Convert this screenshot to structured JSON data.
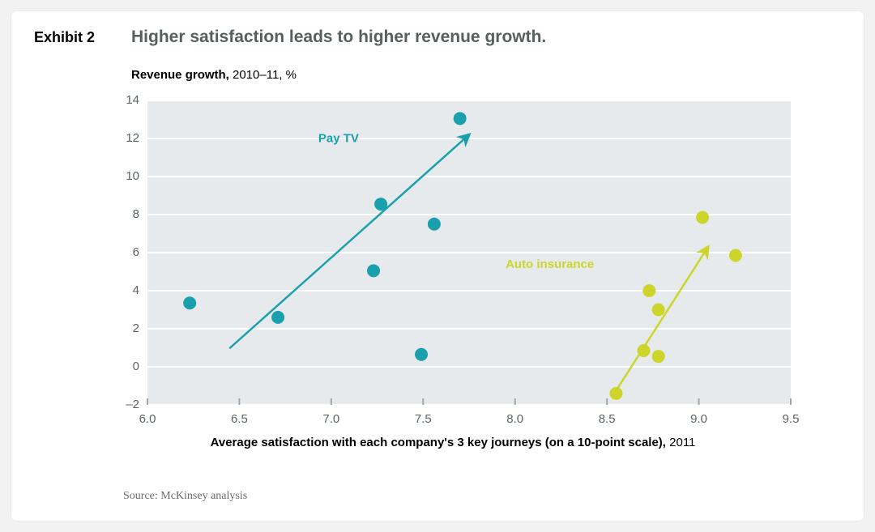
{
  "exhibit_label": "Exhibit 2",
  "title": "Higher satisfaction leads to higher revenue growth.",
  "subtitle_bold": "Revenue growth,",
  "subtitle_rest": " 2010–11, %",
  "xlabel_bold": "Average satisfaction with each company's 3 key journeys (on a 10-point scale),",
  "xlabel_rest": " 2011",
  "source": "Source: McKinsey analysis",
  "chart": {
    "type": "scatter",
    "plot_bg": "#e6eaed",
    "grid_color": "#ffffff",
    "tick_color": "#9fa8ad",
    "tick_label_color": "#5c6366",
    "tick_fontsize": 15,
    "marker_radius": 8,
    "line_width": 2.5,
    "xlim": [
      6.0,
      9.5
    ],
    "ylim": [
      -2,
      14
    ],
    "ytick_step": 2,
    "xtick_step": 0.5,
    "yticks": [
      -2,
      0,
      2,
      4,
      6,
      8,
      10,
      12,
      14
    ],
    "xticks": [
      6.0,
      6.5,
      7.0,
      7.5,
      8.0,
      8.5,
      9.0,
      9.5
    ],
    "series": [
      {
        "name": "Pay TV",
        "label": "Pay TV",
        "color": "#1aa0ad",
        "label_color": "#1aa0ad",
        "label_fontsize": 15,
        "label_fontweight": "700",
        "label_xy": [
          7.15,
          11.8
        ],
        "trend_start": [
          6.45,
          1.0
        ],
        "trend_end": [
          7.75,
          12.2
        ],
        "points": [
          [
            6.23,
            3.35
          ],
          [
            6.71,
            2.6
          ],
          [
            7.23,
            5.05
          ],
          [
            7.27,
            8.55
          ],
          [
            7.49,
            0.65
          ],
          [
            7.56,
            7.5
          ],
          [
            7.7,
            13.05
          ]
        ]
      },
      {
        "name": "Auto insurance",
        "label": "Auto insurance",
        "color": "#cdd52a",
        "label_color": "#cdd52a",
        "label_fontsize": 15,
        "label_fontweight": "700",
        "label_xy": [
          8.43,
          5.2
        ],
        "trend_start": [
          8.53,
          -1.55
        ],
        "trend_end": [
          9.05,
          6.3
        ],
        "points": [
          [
            8.55,
            -1.4
          ],
          [
            8.7,
            0.85
          ],
          [
            8.78,
            0.55
          ],
          [
            8.73,
            4.0
          ],
          [
            8.78,
            3.0
          ],
          [
            9.02,
            7.85
          ],
          [
            9.2,
            5.85
          ]
        ]
      }
    ]
  }
}
